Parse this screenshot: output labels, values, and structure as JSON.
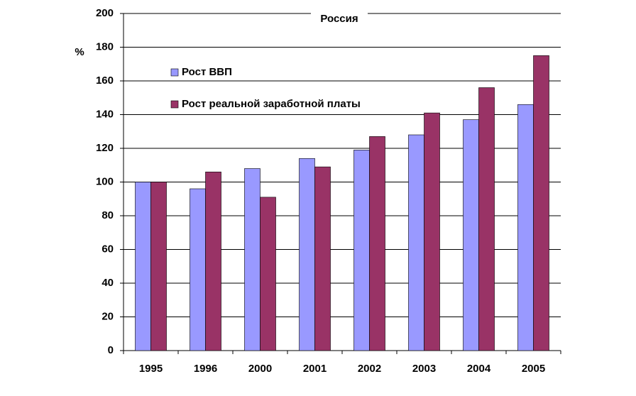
{
  "chart_data": {
    "type": "bar",
    "title": "Россия",
    "y_label": "%",
    "categories": [
      "1995",
      "1996",
      "2000",
      "2001",
      "2002",
      "2003",
      "2004",
      "2005"
    ],
    "series": [
      {
        "name": "Рост ВВП",
        "color": "#9999ff",
        "values": [
          100,
          96,
          108,
          114,
          119,
          128,
          137,
          146
        ]
      },
      {
        "name": "Рост реальной заработной платы",
        "color": "#993366",
        "values": [
          100,
          106,
          91,
          109,
          127,
          141,
          156,
          175
        ]
      }
    ],
    "ylim": [
      0,
      200
    ],
    "yticks": [
      0,
      20,
      40,
      60,
      80,
      100,
      120,
      140,
      160,
      180,
      200
    ],
    "grid": true
  }
}
